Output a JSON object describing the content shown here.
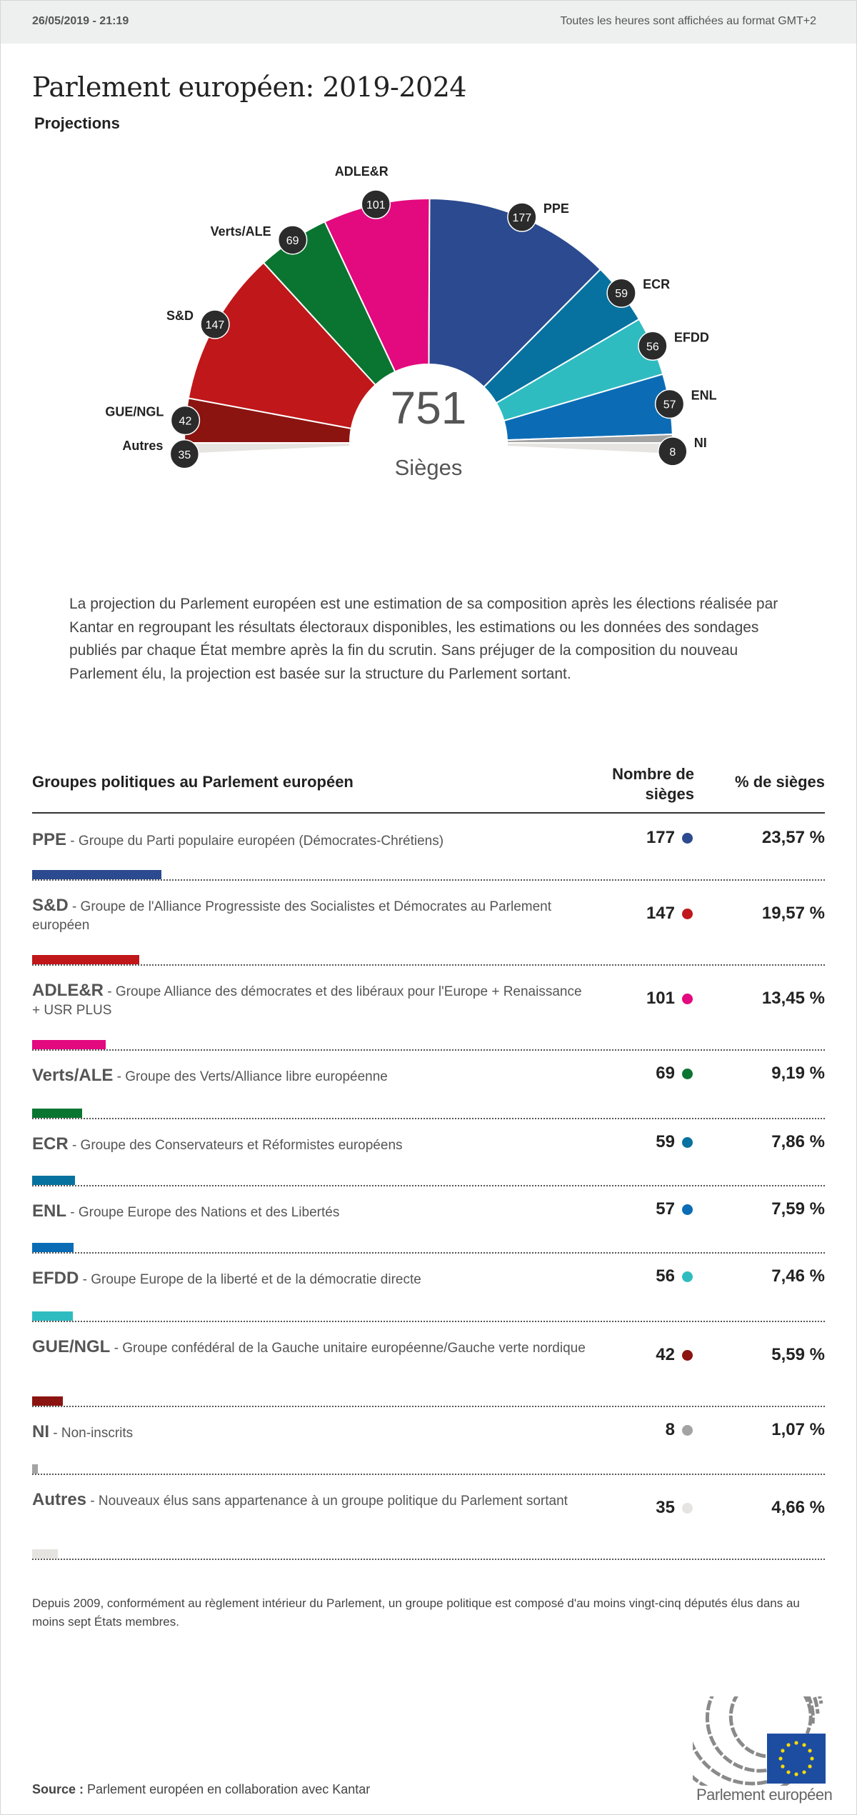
{
  "header": {
    "date": "26/05/2019 - 21:19",
    "timezone_note": "Toutes les heures sont affichées au format GMT+2"
  },
  "title": "Parlement européen: 2019-2024",
  "subtitle": "Projections",
  "chart_data": {
    "type": "pie",
    "shape": "semicircle",
    "total": 751,
    "total_label": "Sièges",
    "order": [
      "GUE/NGL",
      "S&D",
      "Verts/ALE",
      "ADLE&R",
      "PPE",
      "ECR",
      "EFDD",
      "ENL",
      "NI"
    ],
    "categories": [
      "PPE",
      "S&D",
      "ADLE&R",
      "Verts/ALE",
      "ECR",
      "ENL",
      "EFDD",
      "GUE/NGL",
      "NI",
      "Autres"
    ],
    "values": [
      177,
      147,
      101,
      69,
      59,
      57,
      56,
      42,
      8,
      35
    ],
    "colors": [
      "#2b4a8f",
      "#c0171a",
      "#e3097f",
      "#0a7531",
      "#07729f",
      "#0b6cb5",
      "#2fbcc1",
      "#8b1410",
      "#a3a3a3",
      "#e6e4e0"
    ]
  },
  "intro": "La projection du Parlement européen est une estimation de sa composition après les élections réalisée par Kantar en regroupant les résultats électoraux disponibles, les estimations ou les données des sondages publiés par chaque État membre après la fin du scrutin. Sans préjuger de la composition du nouveau Parlement élu, la projection est basée sur la structure du Parlement sortant.",
  "table": {
    "headers": [
      "Groupes politiques au Parlement européen",
      "Nombre de sièges",
      "% de sièges"
    ],
    "rows": [
      {
        "abbr": "PPE",
        "desc": " - Groupe du Parti populaire européen (Démocrates-Chrétiens)",
        "seats": "177",
        "pct": "23,57 %",
        "color": "#2b4a8f",
        "n": 177
      },
      {
        "abbr": "S&D",
        "desc": " - Groupe de l'Alliance Progressiste des Socialistes et Démocrates au Parlement européen",
        "seats": "147",
        "pct": "19,57 %",
        "color": "#c0171a",
        "n": 147
      },
      {
        "abbr": "ADLE&R",
        "desc": " - Groupe Alliance des démocrates et des libéraux pour l'Europe + Renaissance + USR PLUS",
        "seats": "101",
        "pct": "13,45 %",
        "color": "#e3097f",
        "n": 101
      },
      {
        "abbr": "Verts/ALE",
        "desc": " - Groupe des Verts/Alliance libre européenne",
        "seats": "69",
        "pct": "9,19 %",
        "color": "#0a7531",
        "n": 69
      },
      {
        "abbr": "ECR",
        "desc": " - Groupe des Conservateurs et Réformistes européens",
        "seats": "59",
        "pct": "7,86 %",
        "color": "#07729f",
        "n": 59
      },
      {
        "abbr": "ENL",
        "desc": " - Groupe Europe des Nations et des Libertés",
        "seats": "57",
        "pct": "7,59 %",
        "color": "#0b6cb5",
        "n": 57
      },
      {
        "abbr": "EFDD",
        "desc": " - Groupe Europe de la liberté et de la démocratie directe",
        "seats": "56",
        "pct": "7,46 %",
        "color": "#2fbcc1",
        "n": 56
      },
      {
        "abbr": "GUE/NGL",
        "desc": " - Groupe confédéral de la Gauche unitaire européenne/Gauche verte nordique",
        "seats": "42",
        "pct": "5,59 %",
        "color": "#8b1410",
        "n": 42
      },
      {
        "abbr": "NI",
        "desc": " - Non-inscrits",
        "seats": "8",
        "pct": "1,07 %",
        "color": "#a3a3a3",
        "n": 8
      },
      {
        "abbr": "Autres",
        "desc": " - Nouveaux élus sans appartenance à un groupe politique du Parlement sortant",
        "seats": "35",
        "pct": "4,66 %",
        "color": "#e6e4e0",
        "n": 35
      }
    ]
  },
  "note": "Depuis 2009, conformément au règlement intérieur du Parlement, un groupe politique est composé d'au moins vingt-cinq députés élus dans au moins sept États membres.",
  "source": {
    "label": "Source :",
    "text": " Parlement européen en collaboration avec Kantar"
  },
  "logo": {
    "text": "Parlement européen"
  }
}
